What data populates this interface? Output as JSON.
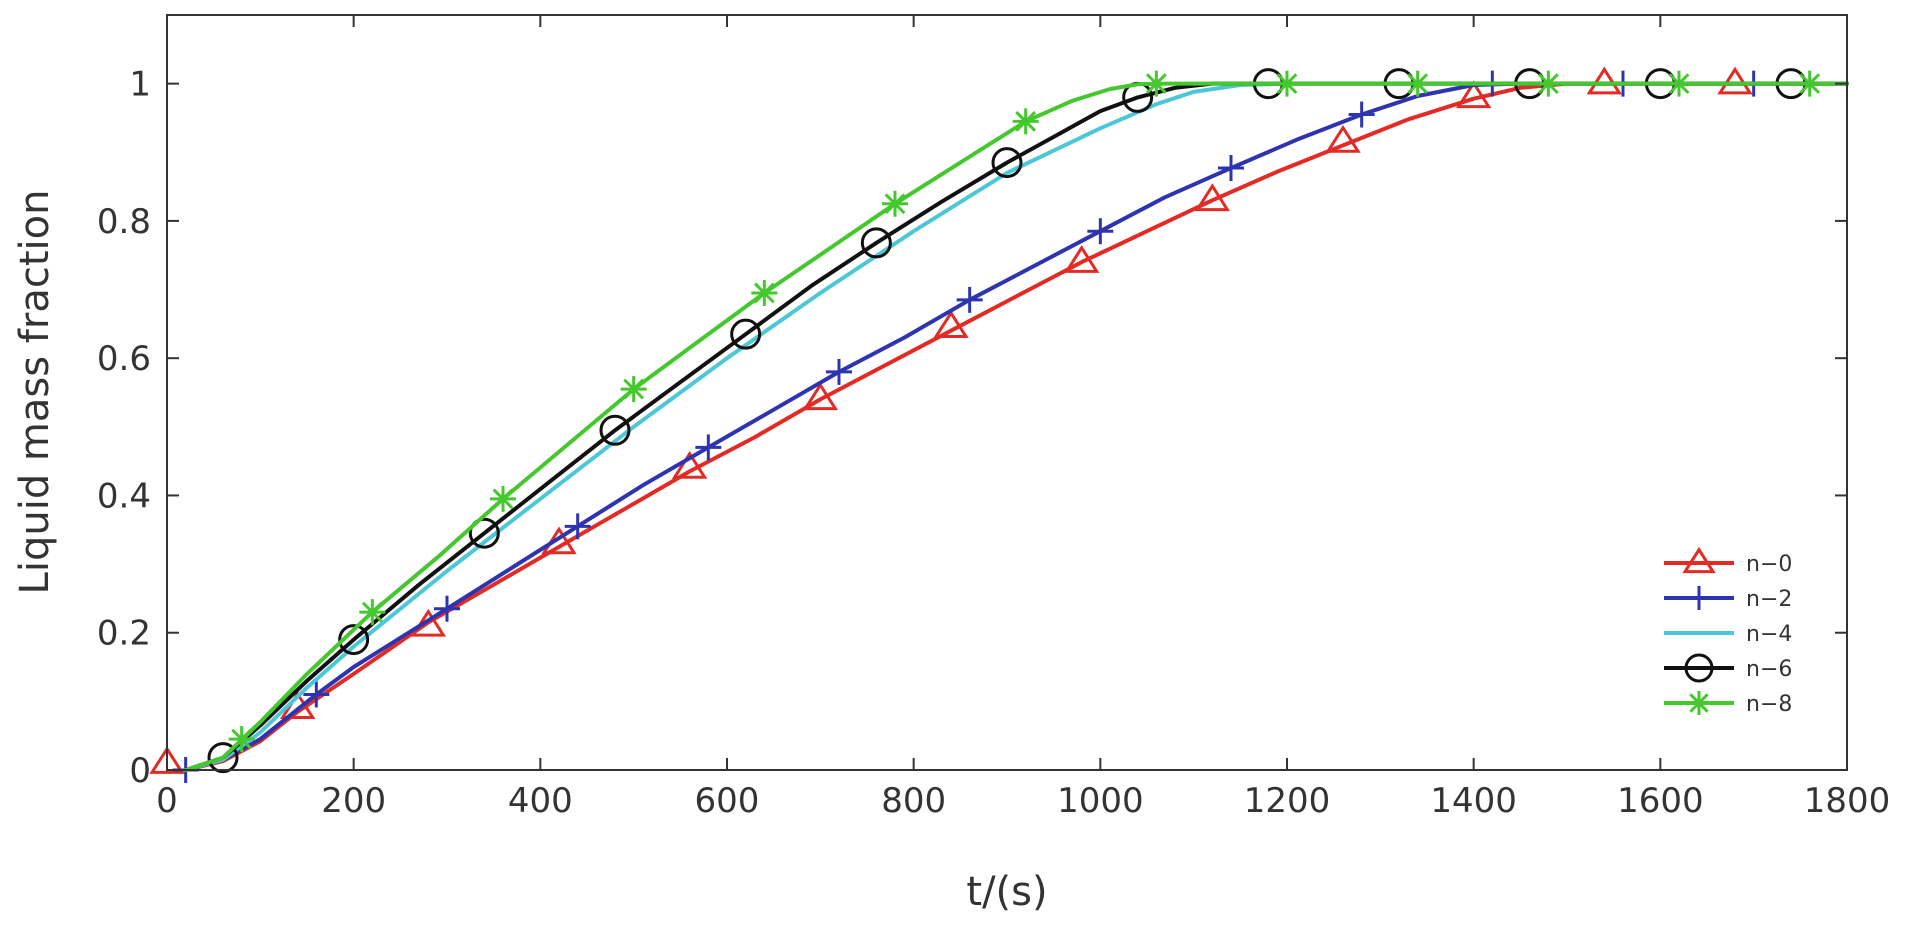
{
  "chart_data": {
    "type": "line",
    "xlabel": "t/(s)",
    "ylabel": "Liquid mass fraction",
    "xlim": [
      0,
      1800
    ],
    "ylim": [
      0,
      1.1
    ],
    "x_ticks": [
      "0",
      "200",
      "400",
      "600",
      "800",
      "1000",
      "1200",
      "1400",
      "1600",
      "1800"
    ],
    "y_ticks": [
      "0",
      "0.2",
      "0.4",
      "0.6",
      "0.8",
      "1"
    ],
    "grid": false,
    "legend_position": "bottom-right",
    "series": [
      {
        "name": "n−0",
        "color": "#e32b25",
        "marker": "triangle",
        "points": [
          [
            20,
            0
          ],
          [
            60,
            0.013
          ],
          [
            100,
            0.042
          ],
          [
            140,
            0.085
          ],
          [
            200,
            0.14
          ],
          [
            280,
            0.215
          ],
          [
            350,
            0.27
          ],
          [
            420,
            0.325
          ],
          [
            490,
            0.38
          ],
          [
            560,
            0.435
          ],
          [
            630,
            0.485
          ],
          [
            700,
            0.54
          ],
          [
            770,
            0.59
          ],
          [
            840,
            0.64
          ],
          [
            910,
            0.69
          ],
          [
            980,
            0.74
          ],
          [
            1050,
            0.785
          ],
          [
            1120,
            0.83
          ],
          [
            1190,
            0.872
          ],
          [
            1260,
            0.91
          ],
          [
            1330,
            0.948
          ],
          [
            1400,
            0.978
          ],
          [
            1450,
            0.994
          ],
          [
            1500,
            1.0
          ],
          [
            1550,
            1.0
          ],
          [
            1600,
            1.0
          ],
          [
            1650,
            1.0
          ],
          [
            1700,
            1.0
          ],
          [
            1750,
            1.0
          ],
          [
            1800,
            1.0
          ]
        ],
        "marker_x": [
          0,
          140,
          280,
          420,
          560,
          700,
          840,
          980,
          1120,
          1260,
          1400,
          1540,
          1680
        ],
        "marker_y": [
          0.01,
          0.09,
          0.21,
          0.33,
          0.44,
          0.54,
          0.645,
          0.74,
          0.83,
          0.915,
          0.98,
          1.0,
          1.0
        ]
      },
      {
        "name": "n−2",
        "color": "#2e33b0",
        "marker": "plus",
        "points": [
          [
            20,
            0
          ],
          [
            60,
            0.015
          ],
          [
            100,
            0.045
          ],
          [
            160,
            0.11
          ],
          [
            200,
            0.15
          ],
          [
            300,
            0.235
          ],
          [
            370,
            0.295
          ],
          [
            440,
            0.355
          ],
          [
            510,
            0.415
          ],
          [
            580,
            0.47
          ],
          [
            650,
            0.525
          ],
          [
            720,
            0.58
          ],
          [
            790,
            0.63
          ],
          [
            860,
            0.685
          ],
          [
            930,
            0.735
          ],
          [
            1000,
            0.785
          ],
          [
            1070,
            0.835
          ],
          [
            1140,
            0.877
          ],
          [
            1210,
            0.918
          ],
          [
            1280,
            0.955
          ],
          [
            1340,
            0.982
          ],
          [
            1400,
            0.998
          ],
          [
            1450,
            1.0
          ],
          [
            1500,
            1.0
          ],
          [
            1600,
            1.0
          ],
          [
            1700,
            1.0
          ],
          [
            1800,
            1.0
          ]
        ],
        "marker_x": [
          20,
          160,
          300,
          440,
          580,
          720,
          860,
          1000,
          1140,
          1280,
          1420,
          1560,
          1700
        ],
        "marker_y": [
          0,
          0.11,
          0.235,
          0.355,
          0.47,
          0.58,
          0.685,
          0.785,
          0.877,
          0.955,
          1.0,
          1.0,
          1.0
        ]
      },
      {
        "name": "n−4",
        "color": "#4cc7d7",
        "marker": "none",
        "points": [
          [
            20,
            0
          ],
          [
            60,
            0.015
          ],
          [
            100,
            0.055
          ],
          [
            150,
            0.12
          ],
          [
            200,
            0.18
          ],
          [
            300,
            0.29
          ],
          [
            400,
            0.395
          ],
          [
            500,
            0.5
          ],
          [
            600,
            0.6
          ],
          [
            700,
            0.695
          ],
          [
            800,
            0.785
          ],
          [
            900,
            0.87
          ],
          [
            1000,
            0.935
          ],
          [
            1060,
            0.97
          ],
          [
            1100,
            0.988
          ],
          [
            1150,
            0.998
          ],
          [
            1200,
            1.0
          ],
          [
            1300,
            1.0
          ],
          [
            1400,
            1.0
          ],
          [
            1500,
            1.0
          ],
          [
            1600,
            1.0
          ],
          [
            1700,
            1.0
          ],
          [
            1800,
            1.0
          ]
        ]
      },
      {
        "name": "n−6",
        "color": "#111111",
        "marker": "circle",
        "points": [
          [
            20,
            0
          ],
          [
            60,
            0.018
          ],
          [
            100,
            0.065
          ],
          [
            150,
            0.13
          ],
          [
            200,
            0.19
          ],
          [
            270,
            0.27
          ],
          [
            340,
            0.345
          ],
          [
            410,
            0.42
          ],
          [
            480,
            0.495
          ],
          [
            550,
            0.565
          ],
          [
            620,
            0.635
          ],
          [
            690,
            0.705
          ],
          [
            760,
            0.768
          ],
          [
            830,
            0.828
          ],
          [
            900,
            0.885
          ],
          [
            960,
            0.93
          ],
          [
            1000,
            0.96
          ],
          [
            1040,
            0.98
          ],
          [
            1080,
            0.994
          ],
          [
            1120,
            1.0
          ],
          [
            1180,
            1.0
          ],
          [
            1300,
            1.0
          ],
          [
            1400,
            1.0
          ],
          [
            1500,
            1.0
          ],
          [
            1600,
            1.0
          ],
          [
            1700,
            1.0
          ],
          [
            1800,
            1.0
          ]
        ],
        "marker_x": [
          60,
          200,
          340,
          480,
          620,
          760,
          900,
          1040,
          1180,
          1320,
          1460,
          1600,
          1740
        ],
        "marker_y": [
          0.018,
          0.19,
          0.345,
          0.495,
          0.635,
          0.768,
          0.885,
          0.98,
          1.0,
          1.0,
          1.0,
          1.0,
          1.0
        ]
      },
      {
        "name": "n−8",
        "color": "#45c82e",
        "marker": "star",
        "points": [
          [
            20,
            0
          ],
          [
            60,
            0.018
          ],
          [
            100,
            0.07
          ],
          [
            150,
            0.14
          ],
          [
            220,
            0.23
          ],
          [
            290,
            0.31
          ],
          [
            360,
            0.395
          ],
          [
            430,
            0.475
          ],
          [
            500,
            0.555
          ],
          [
            570,
            0.625
          ],
          [
            640,
            0.695
          ],
          [
            710,
            0.76
          ],
          [
            780,
            0.825
          ],
          [
            850,
            0.885
          ],
          [
            920,
            0.945
          ],
          [
            970,
            0.975
          ],
          [
            1010,
            0.992
          ],
          [
            1040,
            0.999
          ],
          [
            1070,
            1.0
          ],
          [
            1200,
            1.0
          ],
          [
            1300,
            1.0
          ],
          [
            1400,
            1.0
          ],
          [
            1500,
            1.0
          ],
          [
            1600,
            1.0
          ],
          [
            1700,
            1.0
          ],
          [
            1800,
            1.0
          ]
        ],
        "marker_x": [
          80,
          220,
          360,
          500,
          640,
          780,
          920,
          1060,
          1200,
          1340,
          1480,
          1620,
          1760
        ],
        "marker_y": [
          0.045,
          0.23,
          0.395,
          0.555,
          0.695,
          0.825,
          0.945,
          1.0,
          1.0,
          1.0,
          1.0,
          1.0,
          1.0
        ]
      }
    ]
  }
}
